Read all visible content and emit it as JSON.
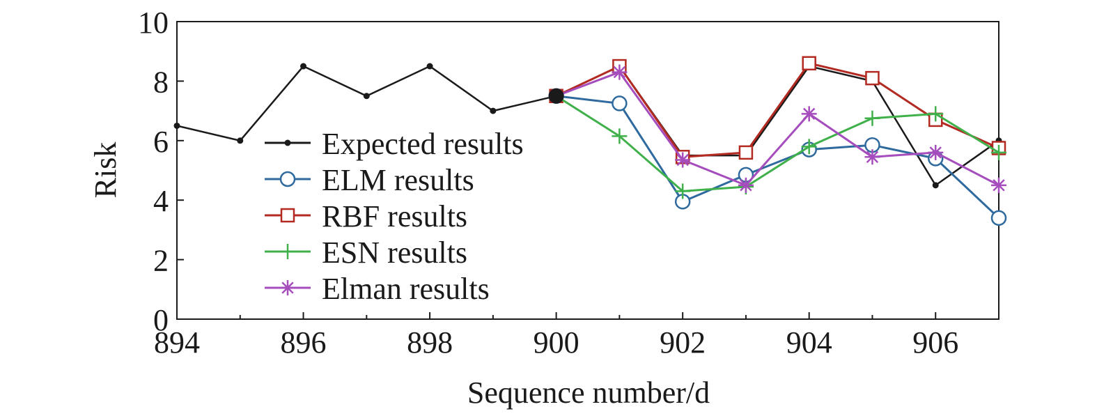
{
  "chart_data": {
    "type": "line",
    "xlabel": "Sequence number/d",
    "ylabel": "Risk",
    "xlim": [
      894,
      907
    ],
    "ylim": [
      0,
      10
    ],
    "xticks": [
      894,
      896,
      898,
      900,
      902,
      904,
      906
    ],
    "yticks": [
      0,
      2,
      4,
      6,
      8,
      10
    ],
    "legend_position": "center-left",
    "series": [
      {
        "name": "Expected results",
        "color": "#1a1a1a",
        "marker": "dot",
        "x": [
          894,
          895,
          896,
          897,
          898,
          899,
          900,
          901,
          902,
          903,
          904,
          905,
          906,
          907
        ],
        "y": [
          6.5,
          6.0,
          8.5,
          7.5,
          8.5,
          7.0,
          7.5,
          8.5,
          5.5,
          5.5,
          8.5,
          8.0,
          4.5,
          6.0
        ]
      },
      {
        "name": "ELM results",
        "color": "#2f6a9e",
        "marker": "circle",
        "x": [
          900,
          901,
          902,
          903,
          904,
          905,
          906,
          907
        ],
        "y": [
          7.5,
          7.25,
          3.95,
          4.85,
          5.7,
          5.85,
          5.4,
          3.4
        ]
      },
      {
        "name": "RBF results",
        "color": "#b22a22",
        "marker": "square",
        "x": [
          900,
          901,
          902,
          903,
          904,
          905,
          906,
          907
        ],
        "y": [
          7.5,
          8.5,
          5.45,
          5.6,
          8.6,
          8.1,
          6.7,
          5.75
        ]
      },
      {
        "name": "ESN results",
        "color": "#3fb04a",
        "marker": "plus",
        "x": [
          900,
          901,
          902,
          903,
          904,
          905,
          906,
          907
        ],
        "y": [
          7.5,
          6.15,
          4.3,
          4.45,
          5.8,
          6.75,
          6.9,
          5.6
        ]
      },
      {
        "name": "Elman results",
        "color": "#a64dbd",
        "marker": "asterisk",
        "x": [
          900,
          901,
          902,
          903,
          904,
          905,
          906,
          907
        ],
        "y": [
          7.5,
          8.3,
          5.35,
          4.5,
          6.9,
          5.45,
          5.6,
          4.5
        ]
      }
    ],
    "highlight_point": {
      "x": 900,
      "y": 7.5,
      "color": "#1a1a1a"
    }
  }
}
